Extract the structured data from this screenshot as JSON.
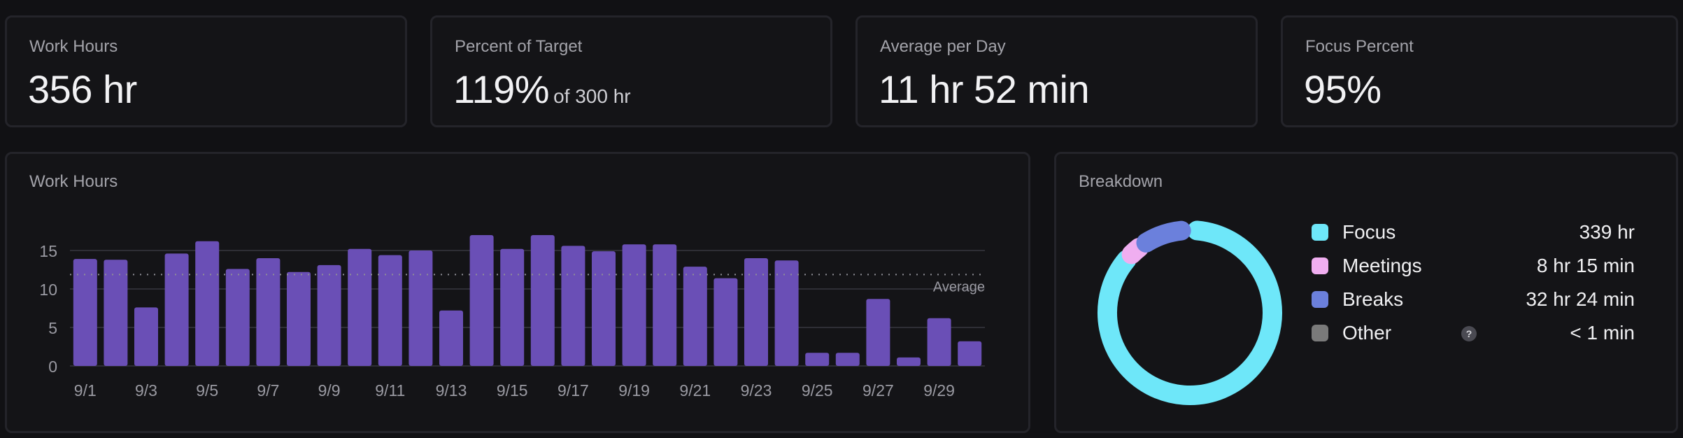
{
  "stats": [
    {
      "label": "Work Hours",
      "value": "356 hr",
      "suffix": ""
    },
    {
      "label": "Percent of Target",
      "value": "119%",
      "suffix": "of 300 hr"
    },
    {
      "label": "Average per Day",
      "value": "11 hr 52 min",
      "suffix": ""
    },
    {
      "label": "Focus Percent",
      "value": "95%",
      "suffix": ""
    }
  ],
  "work_chart": {
    "title": "Work Hours",
    "average_label": "Average"
  },
  "breakdown": {
    "title": "Breakdown",
    "help_glyph": "?",
    "items": [
      {
        "name": "Focus",
        "value": "339 hr",
        "color": "#6ee7f9"
      },
      {
        "name": "Meetings",
        "value": "8 hr 15 min",
        "color": "#f0aef0"
      },
      {
        "name": "Breaks",
        "value": "32 hr 24 min",
        "color": "#6b80dc"
      },
      {
        "name": "Other",
        "value": "< 1 min",
        "color": "#7a7a7a"
      }
    ]
  },
  "chart_data": {
    "type": "bar",
    "title": "Work Hours",
    "categories": [
      "9/1",
      "9/2",
      "9/3",
      "9/4",
      "9/5",
      "9/6",
      "9/7",
      "9/8",
      "9/9",
      "9/10",
      "9/11",
      "9/12",
      "9/13",
      "9/14",
      "9/15",
      "9/16",
      "9/17",
      "9/18",
      "9/19",
      "9/20",
      "9/21",
      "9/22",
      "9/23",
      "9/24",
      "9/25",
      "9/26",
      "9/27",
      "9/28",
      "9/29",
      "9/30"
    ],
    "tick_labels": [
      "9/1",
      "9/3",
      "9/5",
      "9/7",
      "9/9",
      "9/11",
      "9/13",
      "9/15",
      "9/17",
      "9/19",
      "9/21",
      "9/23",
      "9/25",
      "9/27",
      "9/29"
    ],
    "values": [
      13.9,
      13.8,
      7.6,
      14.6,
      16.2,
      12.6,
      14.0,
      12.2,
      13.1,
      15.2,
      14.4,
      15.0,
      7.2,
      17.0,
      15.2,
      17.0,
      15.6,
      14.9,
      15.8,
      15.8,
      12.9,
      11.4,
      14.0,
      13.7,
      1.7,
      1.7,
      8.7,
      1.1,
      6.2,
      3.2
    ],
    "average": 11.87,
    "average_label": "Average",
    "ylim": [
      0,
      17.5
    ],
    "yticks": [
      0,
      5,
      10,
      15
    ],
    "grid": true,
    "bar_color": "#6a4fb6"
  }
}
